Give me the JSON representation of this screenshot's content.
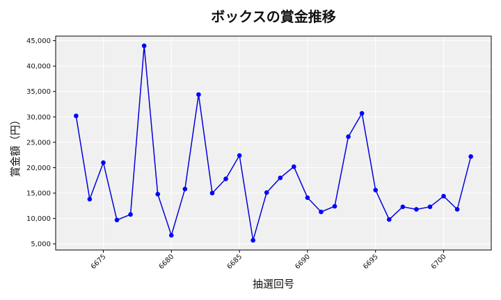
{
  "chart_data": {
    "type": "line",
    "title": "ボックスの賞金推移",
    "xlabel": "抽選回号",
    "ylabel": "賞金額（円）",
    "xlim": [
      6671.5,
      6703.5
    ],
    "ylim": [
      3800,
      45900
    ],
    "x_ticks": [
      6675,
      6680,
      6685,
      6690,
      6695,
      6700
    ],
    "x_tick_labels": [
      "6675",
      "6680",
      "6685",
      "6690",
      "6695",
      "6700"
    ],
    "y_ticks": [
      5000,
      10000,
      15000,
      20000,
      25000,
      30000,
      35000,
      40000,
      45000
    ],
    "y_tick_labels": [
      "5,000",
      "10,000",
      "15,000",
      "20,000",
      "25,000",
      "30,000",
      "35,000",
      "40,000",
      "45,000"
    ],
    "grid": true,
    "line_color": "#0000dd",
    "marker_color": "#0000ff",
    "background_color": "#f0f0f0",
    "series": [
      {
        "x": [
          6673,
          6674,
          6675,
          6676,
          6677,
          6678,
          6679,
          6680,
          6681,
          6682,
          6683,
          6684,
          6685,
          6686,
          6687,
          6688,
          6689,
          6690,
          6691,
          6692,
          6693,
          6694,
          6695,
          6696,
          6697,
          6698,
          6699,
          6700,
          6701,
          6702
        ],
        "values": [
          30200,
          13800,
          21000,
          9700,
          10800,
          44000,
          14800,
          6700,
          15800,
          34400,
          15000,
          17800,
          22400,
          5700,
          15100,
          18000,
          20200,
          14100,
          11300,
          12400,
          26100,
          30700,
          15600,
          9800,
          12300,
          11800,
          12300,
          14400,
          11800,
          22200
        ]
      }
    ]
  }
}
